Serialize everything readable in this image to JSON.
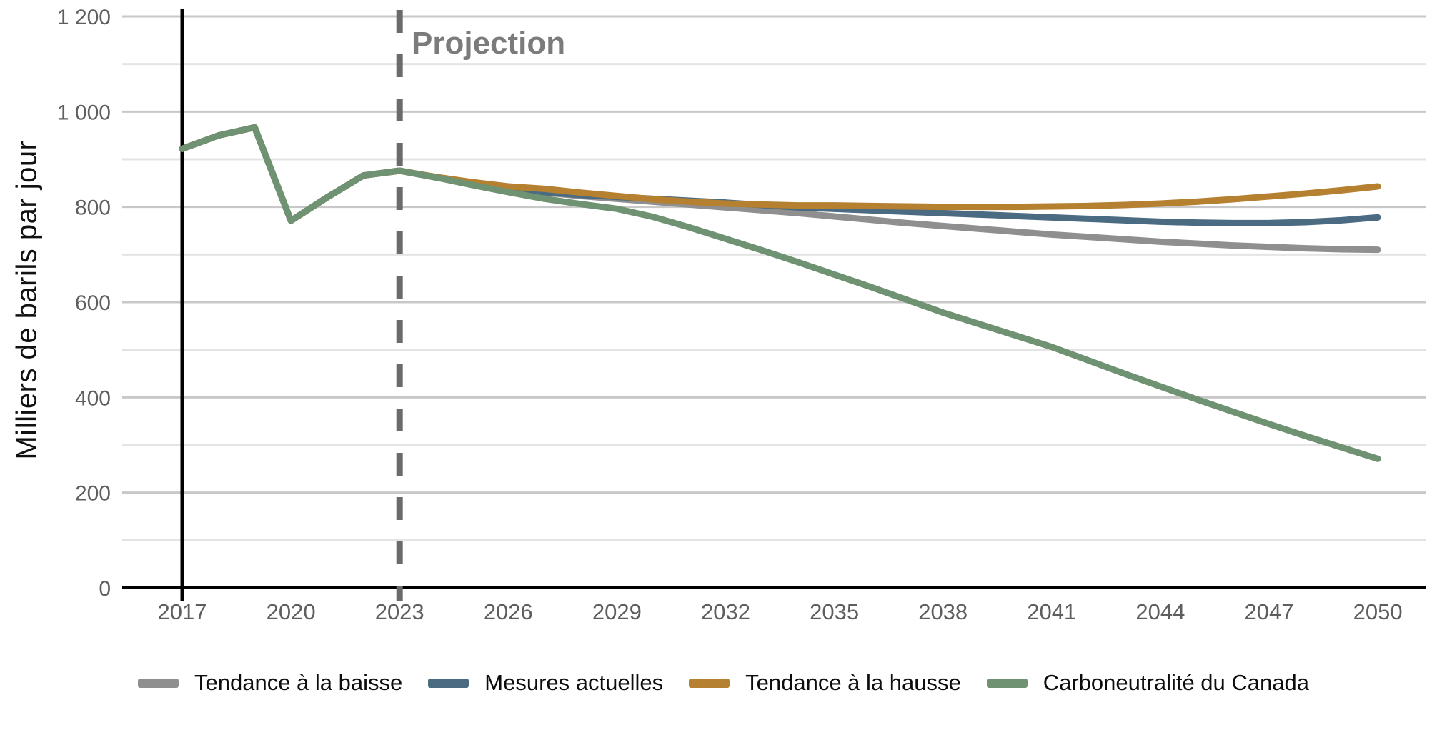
{
  "chart_data": {
    "type": "line",
    "title": "",
    "ylabel": "Milliers de barils par jour",
    "annotation": "Projection",
    "grid": "horizontal, minor every 100, major every 200",
    "legend_position": "bottom",
    "ylim": [
      0,
      1200
    ],
    "xlim": [
      2015.4,
      2051.2
    ],
    "x_ticks": [
      2017,
      2020,
      2023,
      2026,
      2029,
      2032,
      2035,
      2038,
      2041,
      2044,
      2047,
      2050
    ],
    "y_ticks": [
      {
        "v": 0,
        "label": "0"
      },
      {
        "v": 200,
        "label": "200"
      },
      {
        "v": 400,
        "label": "400"
      },
      {
        "v": 600,
        "label": "600"
      },
      {
        "v": 800,
        "label": "800"
      },
      {
        "v": 1000,
        "label": "1 000"
      },
      {
        "v": 1200,
        "label": "1 200"
      }
    ],
    "historical_vline_year": 2017,
    "projection_vline_year": 2023,
    "history_years": [
      2017,
      2018,
      2019,
      2020,
      2021,
      2022,
      2023
    ],
    "history_values": [
      922,
      950,
      967,
      771,
      820,
      866,
      876
    ],
    "projection_years": [
      2023,
      2024,
      2025,
      2026,
      2027,
      2028,
      2029,
      2030,
      2031,
      2032,
      2033,
      2034,
      2035,
      2036,
      2037,
      2038,
      2039,
      2040,
      2041,
      2042,
      2043,
      2044,
      2045,
      2046,
      2047,
      2048,
      2049,
      2050
    ],
    "series": [
      {
        "name": "Tendance à la baisse",
        "color": "#8F8F8F",
        "projection": [
          876,
          862,
          849,
          838,
          830,
          823,
          817,
          811,
          805,
          799,
          793,
          787,
          780,
          773,
          766,
          760,
          754,
          748,
          742,
          737,
          732,
          727,
          723,
          719,
          716,
          713,
          711,
          710
        ]
      },
      {
        "name": "Mesures actuelles",
        "color": "#4A6B82",
        "projection": [
          876,
          862,
          849,
          839,
          831,
          825,
          821,
          817,
          813,
          809,
          804,
          799,
          796,
          793,
          790,
          787,
          784,
          781,
          778,
          775,
          772,
          769,
          767,
          766,
          766,
          768,
          772,
          778
        ]
      },
      {
        "name": "Tendance à la hausse",
        "color": "#B5802F",
        "projection": [
          876,
          863,
          852,
          843,
          838,
          830,
          823,
          816,
          811,
          807,
          805,
          803,
          803,
          802,
          801,
          800,
          800,
          800,
          801,
          802,
          804,
          807,
          811,
          816,
          822,
          828,
          835,
          843
        ]
      },
      {
        "name": "Carboneutralité du Canada",
        "color": "#6F9272",
        "projection": [
          876,
          862,
          846,
          831,
          817,
          806,
          796,
          779,
          757,
          733,
          709,
          684,
          658,
          632,
          605,
          578,
          554,
          530,
          506,
          478,
          450,
          423,
          396,
          370,
          344,
          319,
          295,
          271
        ]
      }
    ],
    "style": {
      "major_grid_color": "#C8C8C8",
      "minor_grid_color": "#E4E4E4",
      "axis_color": "#000000",
      "dashed_line_color": "#6B6B6B",
      "tick_label_color": "#5E5E5E",
      "annotation_color": "#7B7B7B"
    }
  }
}
